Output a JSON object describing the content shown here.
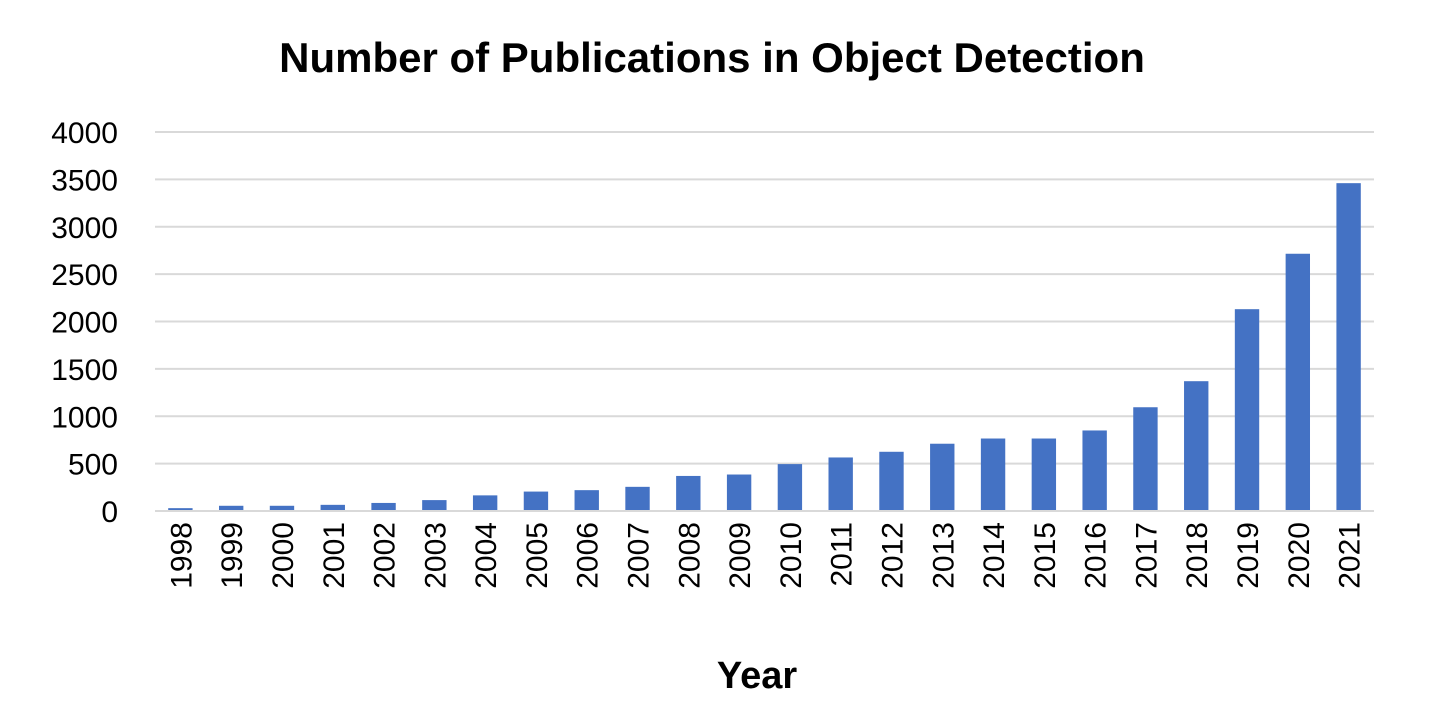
{
  "chart_data": {
    "type": "bar",
    "title": "Number of Publications in Object Detection",
    "xlabel": "Year",
    "ylabel": "",
    "categories": [
      "1998",
      "1999",
      "2000",
      "2001",
      "2002",
      "2003",
      "2004",
      "2005",
      "2006",
      "2007",
      "2008",
      "2009",
      "2010",
      "2011",
      "2012",
      "2013",
      "2014",
      "2015",
      "2016",
      "2017",
      "2018",
      "2019",
      "2020",
      "2021"
    ],
    "values": [
      30,
      55,
      55,
      65,
      85,
      115,
      165,
      205,
      220,
      255,
      370,
      385,
      495,
      565,
      625,
      710,
      765,
      765,
      850,
      1095,
      1370,
      2130,
      2715,
      3460
    ],
    "ylim": [
      0,
      4000
    ],
    "yticks": [
      0,
      500,
      1000,
      1500,
      2000,
      2500,
      3000,
      3500,
      4000
    ],
    "grid": true,
    "legend": "none",
    "bar_color": "#4472c4"
  }
}
